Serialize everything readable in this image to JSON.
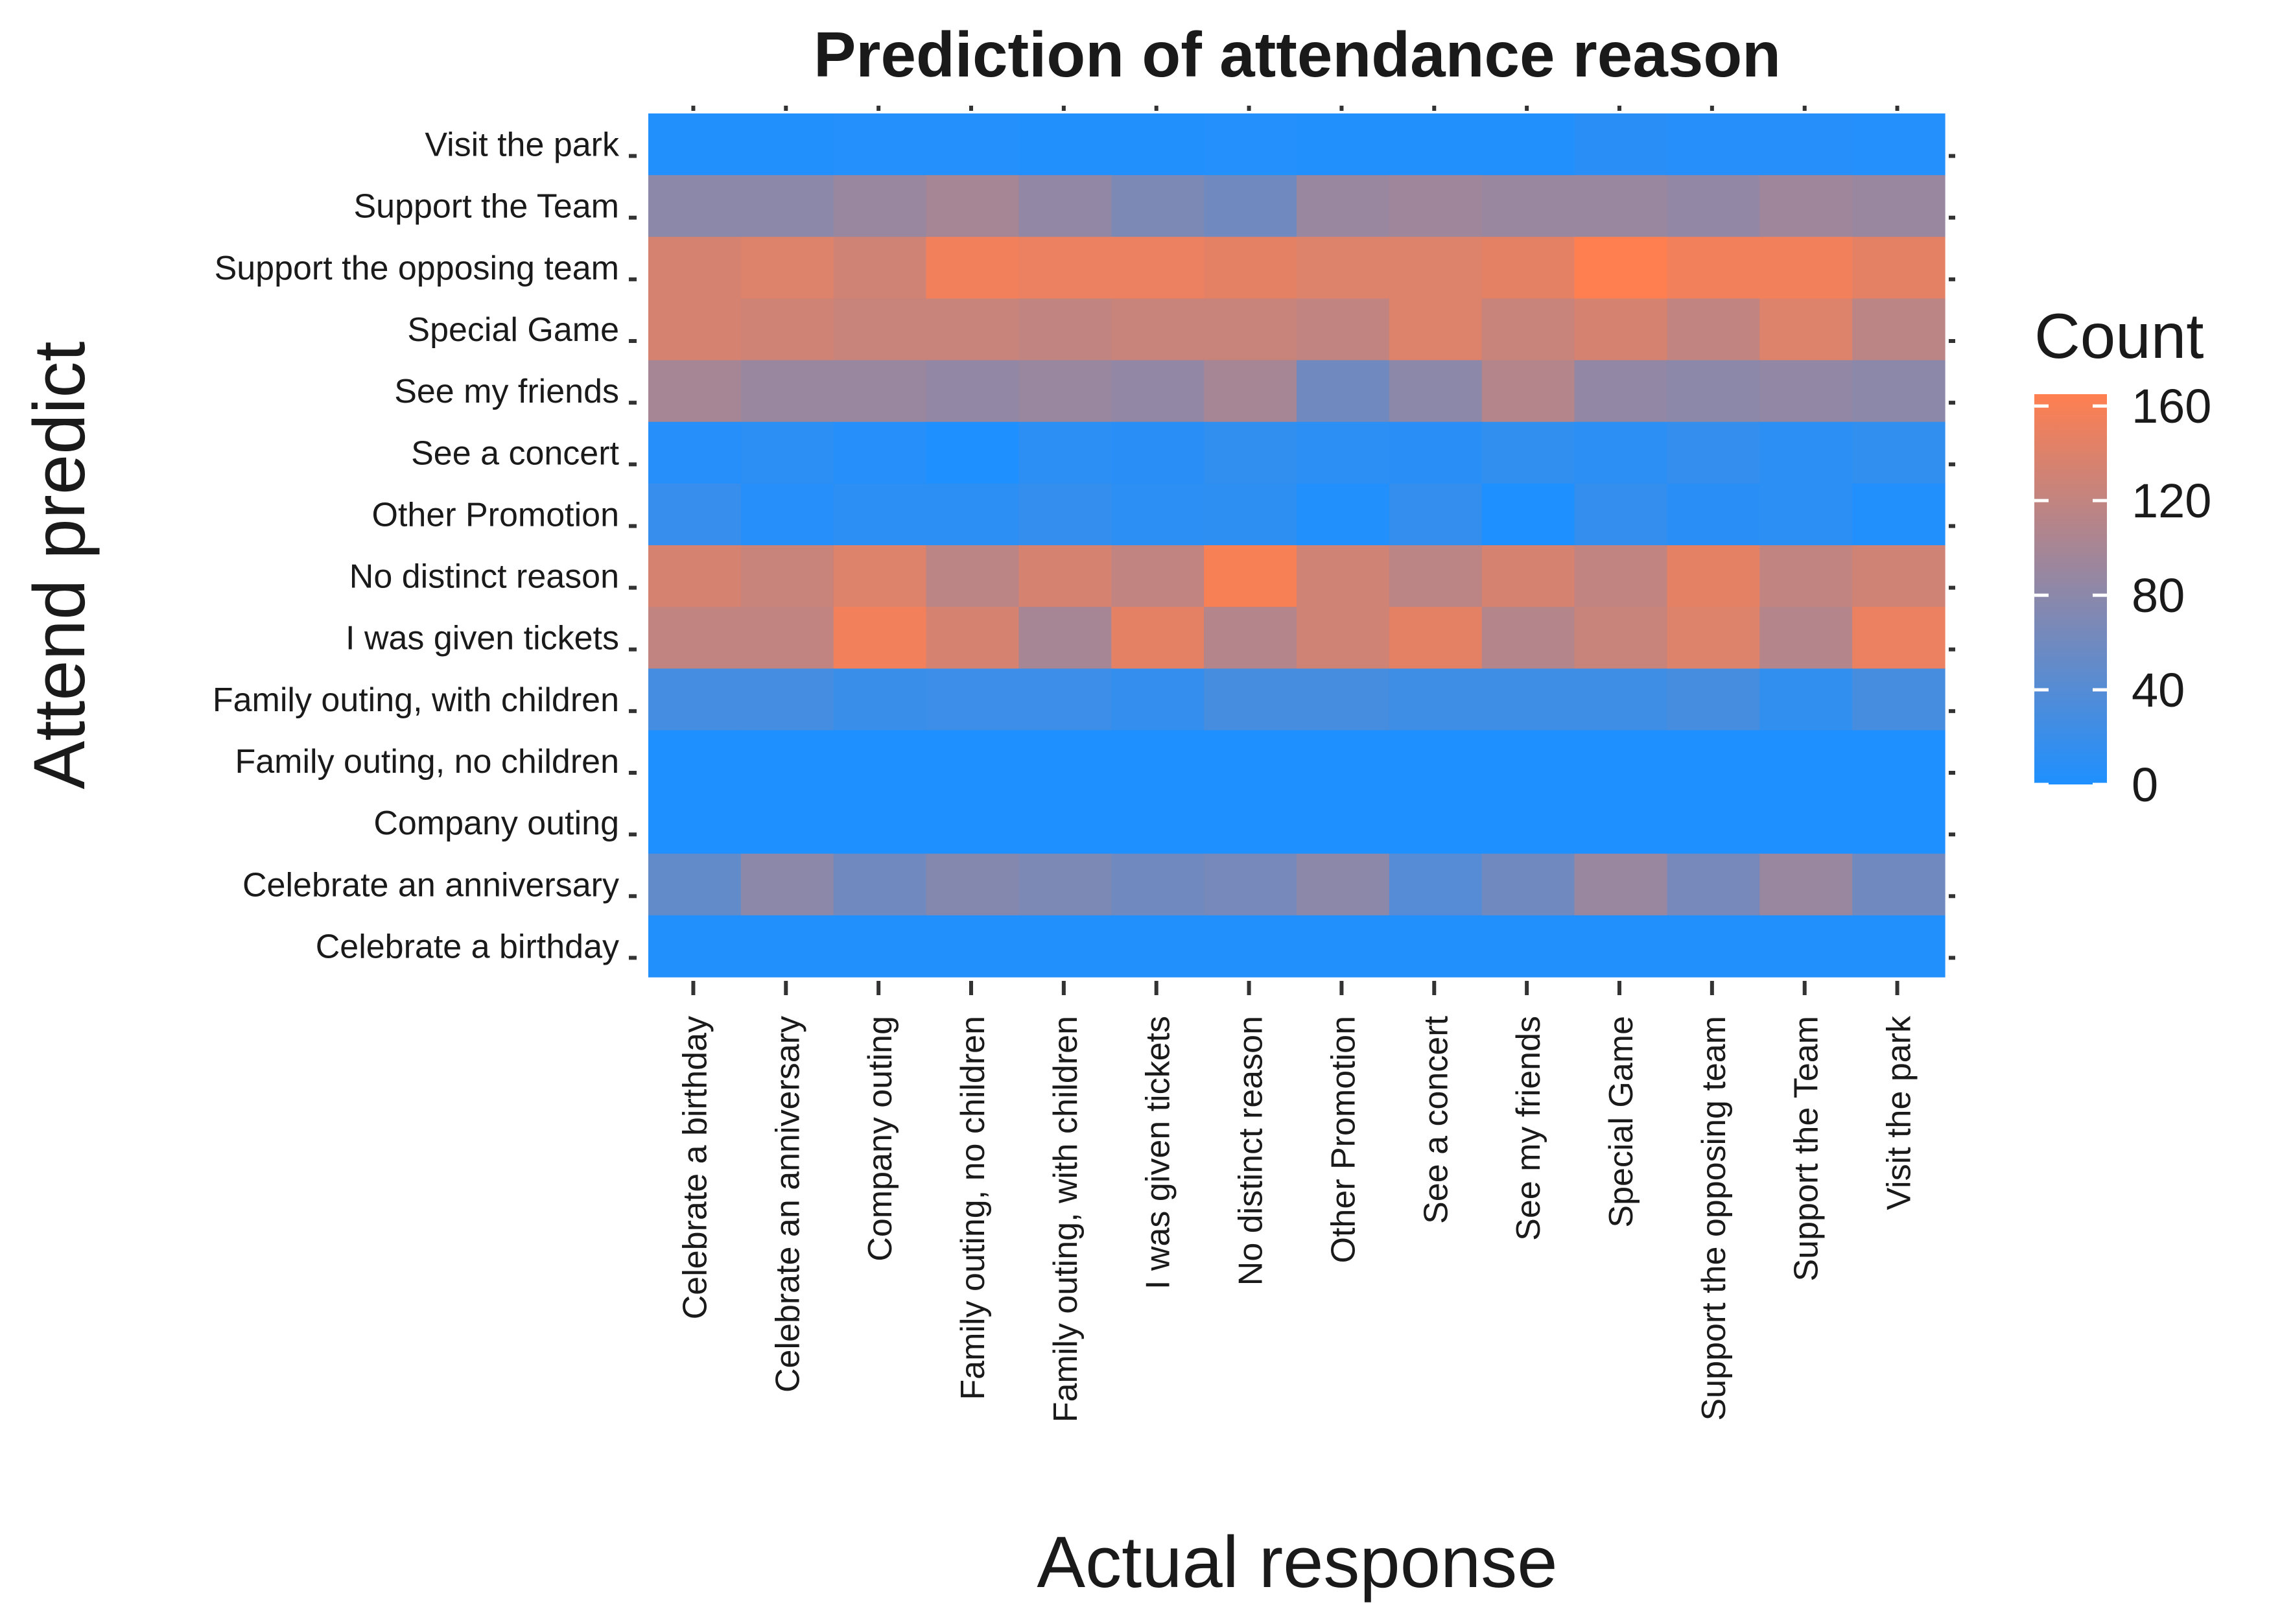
{
  "chart_data": {
    "type": "heatmap",
    "title": "Prediction of attendance reason",
    "xlabel": "Actual response",
    "ylabel": "Attend predict",
    "x_categories": [
      "Celebrate a birthday",
      "Celebrate an anniversary",
      "Company outing",
      "Family outing, no children",
      "Family outing, with children",
      "I was given tickets",
      "No distinct reason",
      "Other Promotion",
      "See a concert",
      "See my friends",
      "Special Game",
      "Support the opposing team",
      "Support the Team",
      "Visit the park"
    ],
    "y_categories": [
      "Visit the park",
      "Support the Team",
      "Support the opposing team",
      "Special Game",
      "See my friends",
      "See a concert",
      "Other Promotion",
      "No distinct reason",
      "I was given tickets",
      "Family outing, with children",
      "Family outing, no children",
      "Company outing",
      "Celebrate an anniversary",
      "Celebrate a birthday"
    ],
    "values": [
      [
        2,
        2,
        4,
        4,
        2,
        2,
        4,
        2,
        2,
        2,
        8,
        6,
        6,
        4
      ],
      [
        80,
        80,
        90,
        100,
        85,
        70,
        60,
        90,
        95,
        90,
        90,
        85,
        95,
        90
      ],
      [
        135,
        140,
        130,
        155,
        150,
        150,
        145,
        140,
        140,
        145,
        165,
        155,
        155,
        145
      ],
      [
        135,
        130,
        125,
        125,
        120,
        125,
        125,
        120,
        140,
        125,
        135,
        120,
        140,
        115
      ],
      [
        100,
        90,
        90,
        85,
        90,
        85,
        100,
        60,
        80,
        110,
        85,
        80,
        85,
        80
      ],
      [
        6,
        10,
        6,
        0,
        10,
        8,
        14,
        10,
        8,
        14,
        10,
        16,
        10,
        14
      ],
      [
        18,
        6,
        10,
        10,
        16,
        10,
        12,
        2,
        16,
        0,
        16,
        8,
        10,
        2
      ],
      [
        135,
        125,
        140,
        115,
        135,
        120,
        160,
        130,
        115,
        135,
        120,
        145,
        120,
        130
      ],
      [
        120,
        120,
        155,
        135,
        100,
        145,
        110,
        130,
        145,
        110,
        125,
        140,
        110,
        150
      ],
      [
        28,
        28,
        20,
        22,
        22,
        16,
        30,
        30,
        24,
        24,
        24,
        30,
        14,
        30
      ],
      [
        0,
        0,
        0,
        0,
        0,
        0,
        0,
        0,
        0,
        0,
        0,
        0,
        0,
        0
      ],
      [
        0,
        0,
        0,
        0,
        0,
        0,
        0,
        0,
        0,
        0,
        0,
        0,
        0,
        0
      ],
      [
        50,
        80,
        60,
        75,
        70,
        60,
        65,
        80,
        40,
        60,
        90,
        65,
        90,
        60
      ],
      [
        2,
        2,
        2,
        2,
        2,
        2,
        2,
        2,
        2,
        2,
        2,
        2,
        2,
        2
      ]
    ],
    "color_scale": {
      "low": "#1e90ff",
      "high": "#ff7f50",
      "range": [
        0,
        165
      ]
    },
    "legend": {
      "title": "Count",
      "ticks": [
        0,
        40,
        80,
        120,
        160
      ],
      "position": "right"
    },
    "grid": false
  }
}
